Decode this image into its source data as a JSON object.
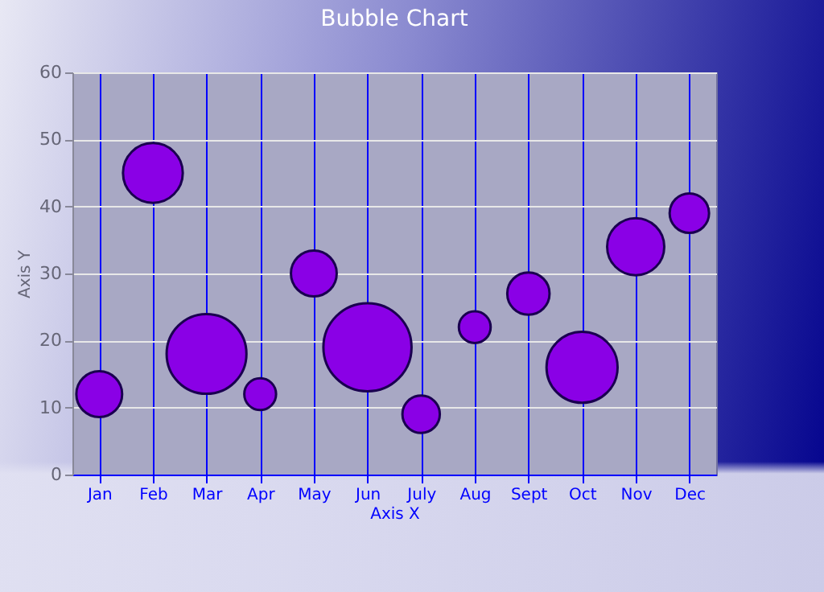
{
  "chart_data": {
    "type": "bubble",
    "title": "Bubble Chart",
    "xlabel": "Axis X",
    "ylabel": "Axis Y",
    "categories": [
      "Jan",
      "Feb",
      "Mar",
      "Apr",
      "May",
      "Jun",
      "July",
      "Aug",
      "Sept",
      "Oct",
      "Nov",
      "Dec"
    ],
    "values": [
      12,
      45,
      18,
      12,
      30,
      19,
      9,
      22,
      27,
      16,
      34,
      39
    ],
    "sizes": [
      0.27,
      0.46,
      0.82,
      0.13,
      0.27,
      1,
      0.18,
      0.13,
      0.23,
      0.65,
      0.42,
      0.2
    ],
    "color": "#8a00e6",
    "ylim": [
      0,
      60
    ],
    "yticks": [
      0,
      10,
      20,
      30,
      40,
      50,
      60
    ],
    "grid": true,
    "legend": false
  }
}
